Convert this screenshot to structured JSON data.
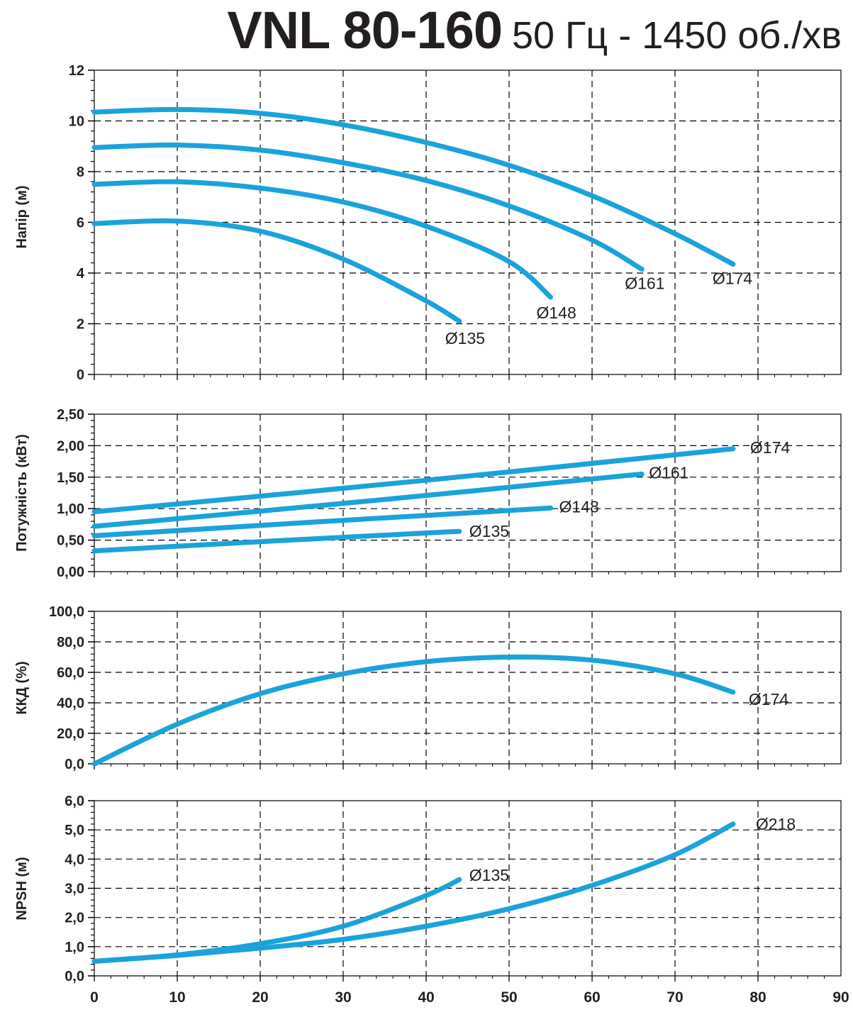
{
  "header": {
    "model": "VNL 80-160",
    "subtitle": "50 Гц - 1450 об./хв"
  },
  "colors": {
    "curve": "#1aa3db",
    "grid": "#000000",
    "text": "#231f20"
  },
  "x_axis": {
    "ticks": [
      "0",
      "10",
      "20",
      "30",
      "40",
      "50",
      "60",
      "70",
      "80",
      "90"
    ],
    "range": [
      0,
      90
    ]
  },
  "chart_data": [
    {
      "type": "line",
      "ylabel": "Напір (м)",
      "xlim": [
        0,
        90
      ],
      "ylim": [
        0,
        12
      ],
      "yticks": [
        "0",
        "2",
        "4",
        "6",
        "8",
        "10",
        "12"
      ],
      "grid": true,
      "series": [
        {
          "name": "Ø174",
          "x": [
            0,
            10,
            20,
            30,
            40,
            50,
            60,
            70,
            77
          ],
          "y": [
            10.35,
            10.45,
            10.3,
            9.85,
            9.15,
            8.25,
            7.05,
            5.55,
            4.35
          ]
        },
        {
          "name": "Ø161",
          "x": [
            0,
            10,
            20,
            30,
            40,
            50,
            60,
            66
          ],
          "y": [
            8.95,
            9.05,
            8.85,
            8.35,
            7.65,
            6.65,
            5.3,
            4.15
          ]
        },
        {
          "name": "Ø148",
          "x": [
            0,
            10,
            20,
            30,
            40,
            50,
            55
          ],
          "y": [
            7.5,
            7.6,
            7.35,
            6.8,
            5.85,
            4.45,
            3.05
          ]
        },
        {
          "name": "Ø135",
          "x": [
            0,
            10,
            20,
            30,
            40,
            44
          ],
          "y": [
            5.95,
            6.05,
            5.65,
            4.55,
            2.9,
            2.1
          ]
        }
      ]
    },
    {
      "type": "line",
      "ylabel": "Потужність (кВт)",
      "xlim": [
        0,
        90
      ],
      "ylim": [
        0,
        2.5
      ],
      "yticks": [
        "0,00",
        "0,50",
        "1,00",
        "1,50",
        "2,00",
        "2,50"
      ],
      "grid": true,
      "series": [
        {
          "name": "Ø174",
          "x": [
            0,
            40,
            77
          ],
          "y": [
            0.95,
            1.45,
            1.95
          ]
        },
        {
          "name": "Ø161",
          "x": [
            0,
            33,
            66
          ],
          "y": [
            0.72,
            1.12,
            1.55
          ]
        },
        {
          "name": "Ø148",
          "x": [
            0,
            27,
            55
          ],
          "y": [
            0.57,
            0.79,
            1.01
          ]
        },
        {
          "name": "Ø135",
          "x": [
            0,
            22,
            44
          ],
          "y": [
            0.33,
            0.49,
            0.64
          ]
        }
      ]
    },
    {
      "type": "line",
      "ylabel": "ККД (%)",
      "xlim": [
        0,
        90
      ],
      "ylim": [
        0,
        100
      ],
      "yticks": [
        "0,0",
        "20,0",
        "40,0",
        "60,0",
        "80,0",
        "100,0"
      ],
      "grid": true,
      "series": [
        {
          "name": "Ø174",
          "x": [
            0,
            10,
            20,
            30,
            40,
            50,
            60,
            70,
            77
          ],
          "y": [
            0,
            26,
            46,
            59,
            67,
            70,
            68,
            59,
            47
          ]
        }
      ]
    },
    {
      "type": "line",
      "ylabel": "NPSH (м)",
      "xlabel": "",
      "xlim": [
        0,
        90
      ],
      "ylim": [
        0,
        6
      ],
      "yticks": [
        "0,0",
        "1,0",
        "2,0",
        "3,0",
        "4,0",
        "5,0",
        "6,0"
      ],
      "grid": true,
      "series": [
        {
          "name": "Ø218",
          "x": [
            0,
            10,
            20,
            30,
            40,
            50,
            60,
            70,
            77
          ],
          "y": [
            0.5,
            0.7,
            0.95,
            1.25,
            1.7,
            2.3,
            3.1,
            4.15,
            5.2
          ]
        },
        {
          "name": "Ø135",
          "x": [
            0,
            10,
            20,
            30,
            40,
            44
          ],
          "y": [
            0.5,
            0.72,
            1.1,
            1.7,
            2.75,
            3.3
          ]
        }
      ]
    }
  ]
}
